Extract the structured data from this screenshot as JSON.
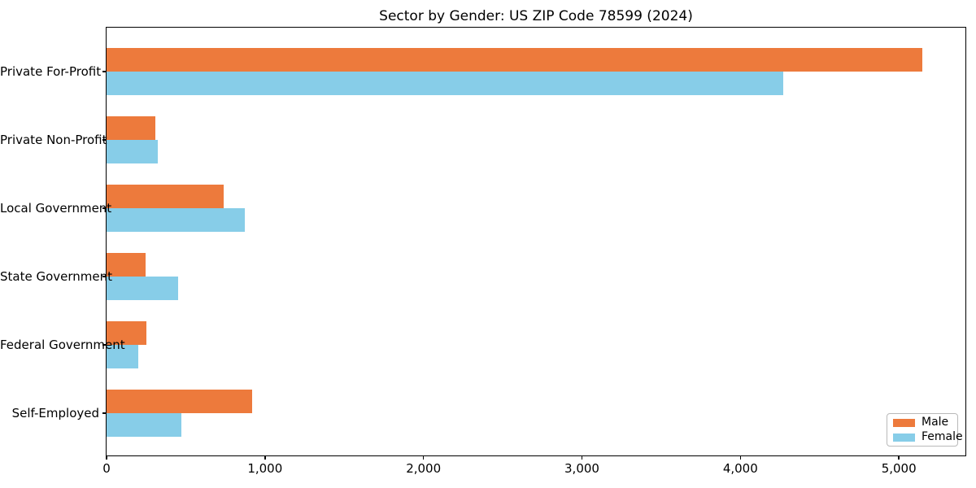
{
  "figure_title": "Sector by Gender: US ZIP Code 78599 (2024)",
  "chart_data": {
    "type": "bar",
    "orientation": "horizontal",
    "title": "Sector by Gender: US ZIP Code 78599 (2024)",
    "categories": [
      "Private For-Profit",
      "Private Non-Profit",
      "Local Government",
      "State Government",
      "Federal Government",
      "Self-Employed"
    ],
    "series": [
      {
        "name": "Male",
        "color": "#ed7a3c",
        "values": [
          5150,
          310,
          740,
          245,
          250,
          920
        ]
      },
      {
        "name": "Female",
        "color": "#87cde8",
        "values": [
          4270,
          325,
          870,
          450,
          200,
          470
        ]
      }
    ],
    "xlabel": "",
    "ylabel": "",
    "xlim": [
      0,
      5420
    ],
    "x_ticks": [
      0,
      1000,
      2000,
      3000,
      4000,
      5000
    ],
    "x_tick_labels": [
      "0",
      "1,000",
      "2,000",
      "3,000",
      "4,000",
      "5,000"
    ],
    "grid": false,
    "background_color": "#ffffff",
    "spine_color": "#000000",
    "legend": {
      "position": "lower-right",
      "items": [
        "Male",
        "Female"
      ]
    }
  }
}
